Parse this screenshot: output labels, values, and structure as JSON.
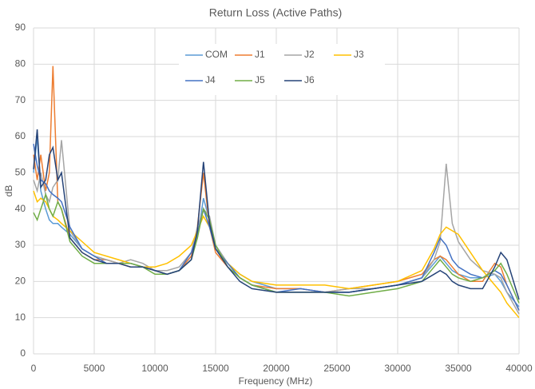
{
  "chart_data": {
    "type": "line",
    "title": "Return Loss (Active Paths)",
    "x_label": "Frequency (MHz)",
    "y_label": "dB",
    "x": [
      0,
      300,
      600,
      1000,
      1300,
      1600,
      2000,
      2300,
      3000,
      4000,
      5000,
      6000,
      7000,
      8000,
      9000,
      10000,
      11000,
      12000,
      13000,
      13500,
      14000,
      14500,
      15000,
      16000,
      17000,
      18000,
      20000,
      22000,
      24000,
      26000,
      28000,
      30000,
      32000,
      33000,
      33500,
      34000,
      34500,
      35000,
      36000,
      37000,
      38000,
      38500,
      39000,
      40000
    ],
    "series": [
      {
        "name": "COM",
        "color": "#5b9bd5",
        "values": [
          50,
          60,
          45,
          40,
          37,
          36,
          36,
          35,
          33,
          29,
          27,
          26,
          25,
          25,
          24,
          23,
          22,
          23,
          27,
          32,
          43,
          37,
          30,
          25,
          22,
          20,
          18,
          18,
          17,
          17,
          18,
          19,
          21,
          25,
          27,
          25,
          23,
          22,
          21,
          21,
          22,
          20,
          17,
          13
        ]
      },
      {
        "name": "J1",
        "color": "#ed7d31",
        "values": [
          55,
          48,
          55,
          45,
          50,
          79.5,
          42,
          40,
          32,
          28,
          26,
          26,
          25,
          24,
          24,
          23,
          22,
          23,
          27,
          35,
          50,
          35,
          28,
          24,
          21,
          19,
          18,
          18,
          17,
          18,
          19,
          20,
          22,
          26,
          27,
          26,
          24,
          22,
          20,
          20,
          25,
          24,
          19,
          12
        ]
      },
      {
        "name": "J2",
        "color": "#a5a5a5",
        "values": [
          48,
          45,
          50,
          44,
          42,
          46,
          48,
          59,
          34,
          29,
          27,
          26,
          25,
          26,
          25,
          23,
          23,
          24,
          28,
          35,
          40,
          38,
          30,
          25,
          21,
          19,
          17,
          17,
          17,
          18,
          18,
          19,
          21,
          26,
          31,
          52.5,
          36,
          31,
          26,
          23,
          22,
          21,
          17,
          11
        ]
      },
      {
        "name": "J3",
        "color": "#ffc000",
        "values": [
          45,
          42,
          43,
          42,
          40,
          38,
          37,
          36,
          34,
          31,
          28,
          27,
          26,
          25,
          24,
          24,
          25,
          27,
          30,
          34,
          38,
          35,
          29,
          25,
          22,
          20,
          19,
          19,
          19,
          18,
          19,
          20,
          23,
          29,
          33,
          35,
          34,
          33,
          28,
          23,
          19,
          17,
          14,
          10
        ]
      },
      {
        "name": "J4",
        "color": "#4472c4",
        "values": [
          58,
          52,
          48,
          47,
          45,
          44,
          43,
          42,
          35,
          29,
          27,
          25,
          25,
          25,
          24,
          23,
          22,
          23,
          28,
          33,
          40,
          35,
          29,
          25,
          21,
          19,
          17,
          18,
          17,
          17,
          18,
          19,
          21,
          28,
          32,
          30,
          26,
          24,
          22,
          21,
          23,
          22,
          19,
          12
        ]
      },
      {
        "name": "J5",
        "color": "#70ad47",
        "values": [
          39,
          37,
          40,
          44,
          40,
          38,
          42,
          40,
          31,
          27,
          25,
          25,
          25,
          25,
          24,
          22,
          22,
          23,
          26,
          32,
          40,
          37,
          30,
          24,
          21,
          19,
          17,
          17,
          17,
          16,
          17,
          18,
          20,
          24,
          26,
          24,
          22,
          21,
          20,
          21,
          23,
          25,
          22,
          14
        ]
      },
      {
        "name": "J6",
        "color": "#264478",
        "values": [
          51,
          62,
          46,
          48,
          55,
          57,
          48,
          50,
          32,
          28,
          26,
          25,
          25,
          24,
          24,
          23,
          22,
          23,
          26,
          34,
          53,
          36,
          29,
          24,
          20,
          18,
          17,
          17,
          17,
          17,
          18,
          19,
          20,
          22,
          23,
          22,
          20,
          19,
          18,
          18,
          24,
          28,
          26,
          15
        ]
      }
    ],
    "xlim": [
      0,
      40000
    ],
    "xticks": [
      0,
      5000,
      10000,
      15000,
      20000,
      25000,
      30000,
      35000,
      40000
    ],
    "ylim": [
      0,
      90
    ],
    "yticks": [
      0,
      10,
      20,
      30,
      40,
      50,
      60,
      70,
      80,
      90
    ],
    "grid": true,
    "legend_position": "top"
  }
}
